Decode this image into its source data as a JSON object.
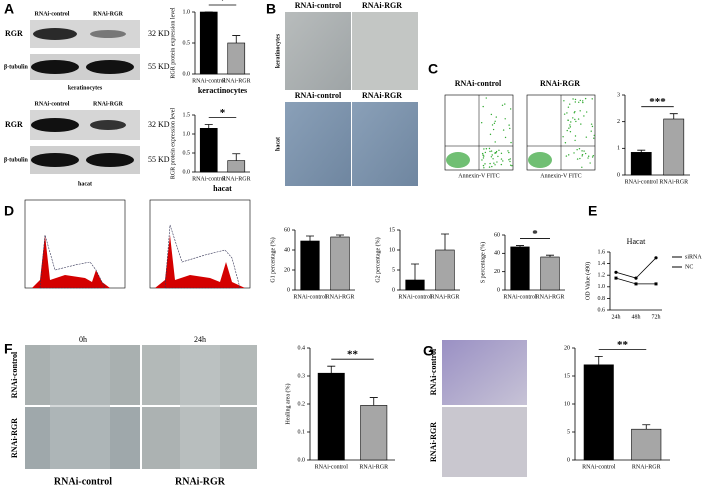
{
  "figure": {
    "panel_labels": [
      "A",
      "B",
      "C",
      "D",
      "E",
      "F",
      "G"
    ],
    "a_blot": {
      "columns": [
        "RNAi-control",
        "RNAi-RGR"
      ],
      "rows": [
        "RGR",
        "β-tubulin"
      ],
      "sizes": [
        "32 KD",
        "55 KD"
      ],
      "captions": [
        "keratinocytes",
        "hacat"
      ]
    },
    "b_images": {
      "columns": [
        "RNAi-control",
        "RNAi-RGR"
      ],
      "rows": [
        "keratinocytes",
        "hacat"
      ]
    },
    "c_flow": {
      "columns": [
        "RNAi-control",
        "RNAi-RGR"
      ],
      "x_axis": "Annexin-V FITC"
    },
    "f_images": {
      "columns": [
        "0h",
        "24h"
      ],
      "rows": [
        "RNAi-control",
        "RNAi-RGR"
      ],
      "captions": [
        "RNAi-control",
        "RNAi-RGR"
      ]
    },
    "g_images": {
      "rows": [
        "RNAi-control",
        "RNAi-RGR"
      ]
    }
  },
  "chart_data": [
    {
      "type": "bar",
      "ylabel": "RGR protein expression level",
      "xlabel": "keractinocytes",
      "categories": [
        "RNAi-control",
        "RNAi-RGR"
      ],
      "values": [
        1.0,
        0.5
      ],
      "errors": [
        0,
        0.12
      ],
      "colors": [
        "#000000",
        "#a6a6a6"
      ],
      "ylim": [
        0,
        1.0
      ],
      "yticks": [
        {
          "value": 0,
          "label": "0.0"
        },
        {
          "value": 0.5,
          "label": "0.5"
        },
        {
          "value": 1,
          "label": "1.0"
        }
      ],
      "annotation": "*"
    },
    {
      "type": "bar",
      "ylabel": "RGR protein expression level",
      "xlabel": "hacat",
      "categories": [
        "RNAi-control",
        "RNAi-RGR"
      ],
      "values": [
        1.15,
        0.3
      ],
      "errors": [
        0.1,
        0.18
      ],
      "colors": [
        "#000000",
        "#a6a6a6"
      ],
      "ylim": [
        0,
        1.5
      ],
      "yticks": [
        {
          "value": 0,
          "label": "0.0"
        },
        {
          "value": 0.5,
          "label": "0.5"
        },
        {
          "value": 1,
          "label": "1.0"
        },
        {
          "value": 1.5,
          "label": "1.5"
        }
      ],
      "annotation": "*"
    },
    {
      "type": "bar",
      "categories": [
        "RNAi-control",
        "RNAi-RGR"
      ],
      "values": [
        0.85,
        2.1
      ],
      "errors": [
        0.08,
        0.2
      ],
      "colors": [
        "#000000",
        "#a6a6a6"
      ],
      "ylim": [
        0,
        3
      ],
      "yticks": [
        0,
        1,
        2,
        3
      ],
      "annotation": "***"
    },
    {
      "type": "bar",
      "ylabel": "G1 percentage (%)",
      "categories": [
        "RNAi-control",
        "RNAi-RGR"
      ],
      "values": [
        49,
        53
      ],
      "errors": [
        5,
        2
      ],
      "colors": [
        "#000000",
        "#a6a6a6"
      ],
      "ylim": [
        0,
        60
      ],
      "yticks": [
        0,
        20,
        40,
        60
      ]
    },
    {
      "type": "bar",
      "ylabel": "G2 percentage (%)",
      "categories": [
        "RNAi-control",
        "RNAi-RGR"
      ],
      "values": [
        2.5,
        10
      ],
      "errors": [
        4,
        4
      ],
      "colors": [
        "#000000",
        "#a6a6a6"
      ],
      "ylim": [
        0,
        15
      ],
      "yticks": [
        0,
        5,
        10,
        15
      ]
    },
    {
      "type": "bar",
      "ylabel": "S percentage (%)",
      "categories": [
        "RNAi-control",
        "RNAi-RGR"
      ],
      "values": [
        47,
        36
      ],
      "errors": [
        1.5,
        2
      ],
      "colors": [
        "#000000",
        "#a6a6a6"
      ],
      "ylim": [
        0,
        60
      ],
      "yticks": [
        0,
        20,
        40,
        60
      ],
      "annotation": "*"
    },
    {
      "type": "line",
      "title": "Hacat",
      "ylabel": "OD Value (490)",
      "categories": [
        "24h",
        "48h",
        "72h"
      ],
      "series": [
        {
          "name": "siRNA",
          "color": "#000000",
          "values": [
            1.25,
            1.15,
            1.5
          ]
        },
        {
          "name": "NC",
          "color": "#000000",
          "values": [
            1.15,
            1.05,
            1.05
          ]
        }
      ],
      "ylim": [
        0.6,
        1.6
      ],
      "yticks": [
        {
          "value": 0.6,
          "label": "0.6"
        },
        {
          "value": 0.8,
          "label": "0.8"
        },
        {
          "value": 1,
          "label": "1.0"
        },
        {
          "value": 1.2,
          "label": "1.2"
        },
        {
          "value": 1.4,
          "label": "1.4"
        },
        {
          "value": 1.6,
          "label": "1.6"
        }
      ]
    },
    {
      "type": "bar",
      "ylabel": "Healing area (%)",
      "categories": [
        "RNAi-control",
        "RNAi-RGR"
      ],
      "values": [
        0.31,
        0.195
      ],
      "errors": [
        0.025,
        0.028
      ],
      "colors": [
        "#000000",
        "#a6a6a6"
      ],
      "ylim": [
        0,
        0.4
      ],
      "yticks": [
        {
          "value": 0,
          "label": "0.0"
        },
        0.1,
        0.2,
        0.3,
        0.4
      ],
      "annotation": "**"
    },
    {
      "type": "bar",
      "categories": [
        "RNAi-control",
        "RNAi-RGR"
      ],
      "values": [
        17,
        5.5
      ],
      "errors": [
        1.5,
        0.8
      ],
      "colors": [
        "#000000",
        "#a6a6a6"
      ],
      "ylim": [
        0,
        20
      ],
      "yticks": [
        0,
        5,
        10,
        15,
        20
      ],
      "annotation": "**"
    }
  ]
}
